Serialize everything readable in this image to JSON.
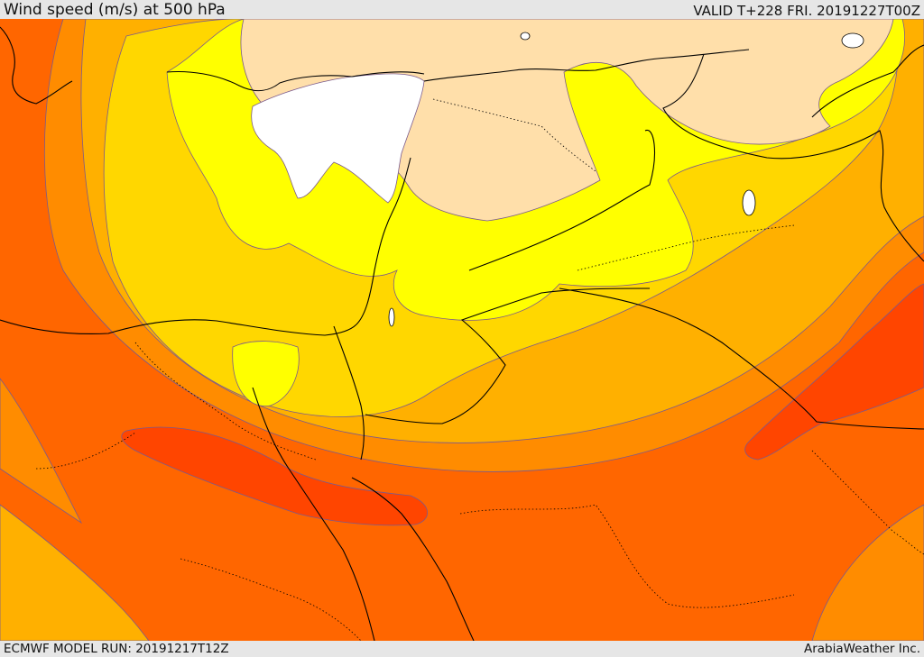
{
  "header": {
    "title": "Wind speed (m/s) at 500 hPa",
    "valid": "VALID T+228 FRI. 20191227T00Z"
  },
  "footer": {
    "model_run": "ECMWF MODEL RUN: 20191217T12Z",
    "credit": "ArabiaWeather Inc."
  },
  "colors": {
    "band_white": "#ffffff",
    "band_tan": "#ffdfaa",
    "band_yellow": "#ffff00",
    "band_gold": "#ffd700",
    "band_amber": "#ffb000",
    "band_orange": "#ff8c00",
    "band_deep_orange": "#ff6600",
    "band_red_orange": "#ff4500",
    "contour_line": "#7b5a8c",
    "border_line": "#000000"
  }
}
